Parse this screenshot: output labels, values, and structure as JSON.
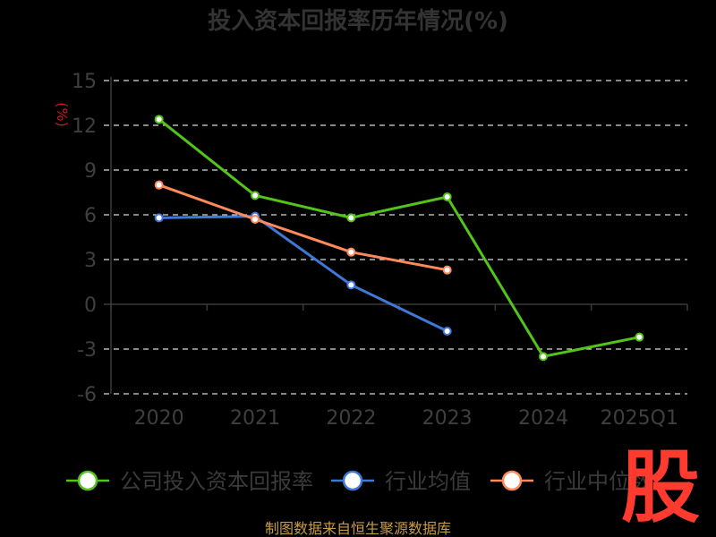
{
  "chart_data": {
    "type": "line",
    "title": "投入资本回报率历年情况(%)",
    "ylabel": "(%)",
    "xlabel": "",
    "categories": [
      "2020",
      "2021",
      "2022",
      "2023",
      "2024",
      "2025Q1"
    ],
    "ylim": [
      -6,
      15
    ],
    "yticks": [
      15,
      12,
      9,
      6,
      3,
      0,
      -3,
      -6
    ],
    "grid": true,
    "legend_position": "bottom",
    "series": [
      {
        "name": "公司投入资本回报率",
        "color": "#52c41a",
        "values": [
          12.4,
          7.3,
          5.8,
          7.2,
          -3.5,
          -2.2
        ]
      },
      {
        "name": "行业均值",
        "color": "#3f79d8",
        "values": [
          5.8,
          5.9,
          1.3,
          -1.8,
          null,
          null
        ]
      },
      {
        "name": "行业中位数",
        "color": "#ff8a5b",
        "values": [
          8.0,
          5.7,
          3.5,
          2.3,
          null,
          null
        ]
      }
    ]
  },
  "source_text": "制图数据来自恒生聚源数据库",
  "logo_text": "股"
}
